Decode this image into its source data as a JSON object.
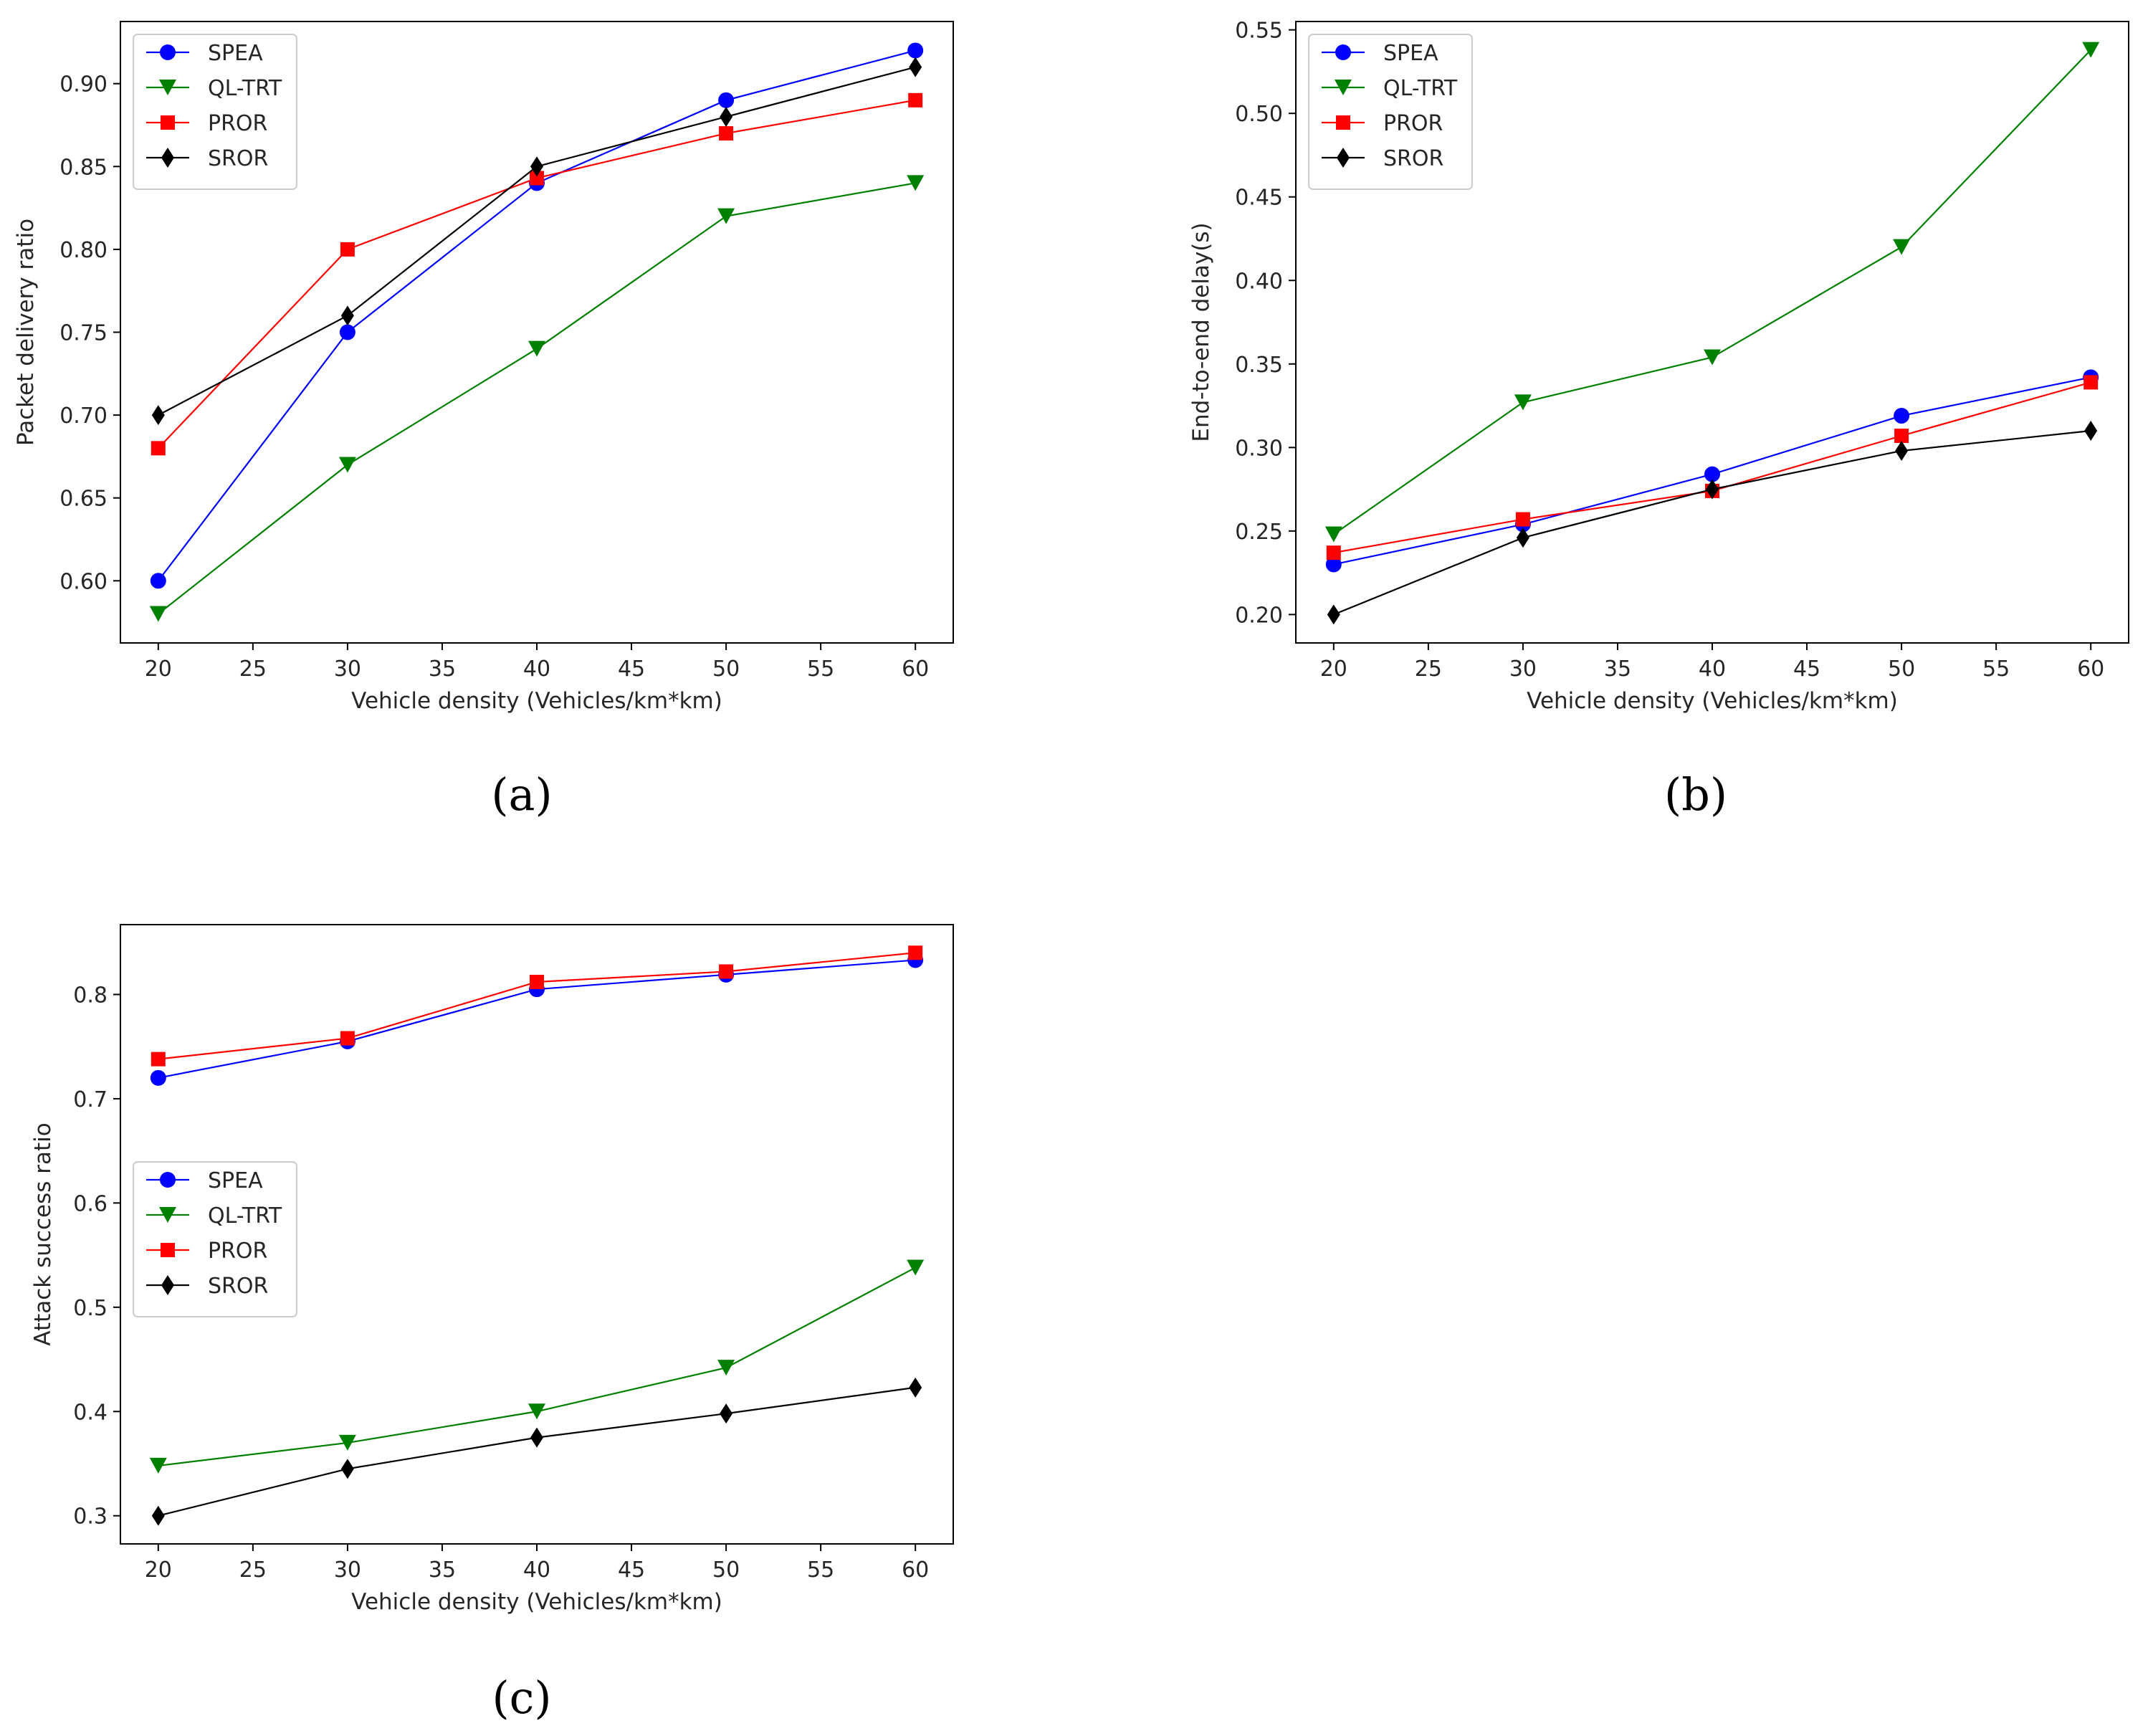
{
  "chart_data": [
    {
      "panel_label": "(a)",
      "type": "line",
      "x": [
        20,
        30,
        40,
        50,
        60
      ],
      "xticks": [
        "20",
        "25",
        "30",
        "35",
        "40",
        "45",
        "50",
        "55",
        "60"
      ],
      "xlim": [
        18,
        62
      ],
      "ylim": [
        0.5625,
        0.9375
      ],
      "yticks": [
        "0.60",
        "0.65",
        "0.70",
        "0.75",
        "0.80",
        "0.85",
        "0.90"
      ],
      "xlabel": "Vehicle density (Vehicles/km*km)",
      "ylabel": "Packet delivery ratio",
      "legend_position": "upper-left",
      "series": [
        {
          "name": "SPEA",
          "color": "#0000ff",
          "marker": "circle",
          "values": [
            0.6,
            0.75,
            0.84,
            0.89,
            0.92
          ]
        },
        {
          "name": "QL-TRT",
          "color": "#008000",
          "marker": "triangle-down",
          "values": [
            0.58,
            0.67,
            0.74,
            0.82,
            0.84
          ]
        },
        {
          "name": "PROR",
          "color": "#ff0000",
          "marker": "square",
          "values": [
            0.68,
            0.8,
            0.843,
            0.87,
            0.89
          ]
        },
        {
          "name": "SROR",
          "color": "#000000",
          "marker": "diamond",
          "values": [
            0.7,
            0.76,
            0.85,
            0.88,
            0.91
          ]
        }
      ]
    },
    {
      "panel_label": "(b)",
      "type": "line",
      "x": [
        20,
        30,
        40,
        50,
        60
      ],
      "xticks": [
        "20",
        "25",
        "30",
        "35",
        "40",
        "45",
        "50",
        "55",
        "60"
      ],
      "xlim": [
        18,
        62
      ],
      "ylim": [
        0.183,
        0.555
      ],
      "yticks": [
        "0.20",
        "0.25",
        "0.30",
        "0.35",
        "0.40",
        "0.45",
        "0.50",
        "0.55"
      ],
      "xlabel": "Vehicle density (Vehicles/km*km)",
      "ylabel": "End-to-end delay(s)",
      "legend_position": "upper-left",
      "series": [
        {
          "name": "SPEA",
          "color": "#0000ff",
          "marker": "circle",
          "values": [
            0.23,
            0.254,
            0.284,
            0.319,
            0.342
          ]
        },
        {
          "name": "QL-TRT",
          "color": "#008000",
          "marker": "triangle-down",
          "values": [
            0.248,
            0.327,
            0.354,
            0.42,
            0.538
          ]
        },
        {
          "name": "PROR",
          "color": "#ff0000",
          "marker": "square",
          "values": [
            0.237,
            0.257,
            0.274,
            0.307,
            0.339
          ]
        },
        {
          "name": "SROR",
          "color": "#000000",
          "marker": "diamond",
          "values": [
            0.2,
            0.246,
            0.275,
            0.298,
            0.31
          ]
        }
      ]
    },
    {
      "panel_label": "(c)",
      "type": "line",
      "x": [
        20,
        30,
        40,
        50,
        60
      ],
      "xticks": [
        "20",
        "25",
        "30",
        "35",
        "40",
        "45",
        "50",
        "55",
        "60"
      ],
      "xlim": [
        18,
        62
      ],
      "ylim": [
        0.273,
        0.867
      ],
      "yticks": [
        "0.3",
        "0.4",
        "0.5",
        "0.6",
        "0.7",
        "0.8"
      ],
      "xlabel": "Vehicle density (Vehicles/km*km)",
      "ylabel": "Attack success ratio",
      "legend_position": "center-left",
      "series": [
        {
          "name": "SPEA",
          "color": "#0000ff",
          "marker": "circle",
          "values": [
            0.72,
            0.755,
            0.805,
            0.819,
            0.833
          ]
        },
        {
          "name": "QL-TRT",
          "color": "#008000",
          "marker": "triangle-down",
          "values": [
            0.348,
            0.37,
            0.4,
            0.442,
            0.538
          ]
        },
        {
          "name": "PROR",
          "color": "#ff0000",
          "marker": "square",
          "values": [
            0.738,
            0.758,
            0.812,
            0.822,
            0.84
          ]
        },
        {
          "name": "SROR",
          "color": "#000000",
          "marker": "diamond",
          "values": [
            0.3,
            0.345,
            0.375,
            0.398,
            0.423
          ]
        }
      ]
    }
  ]
}
